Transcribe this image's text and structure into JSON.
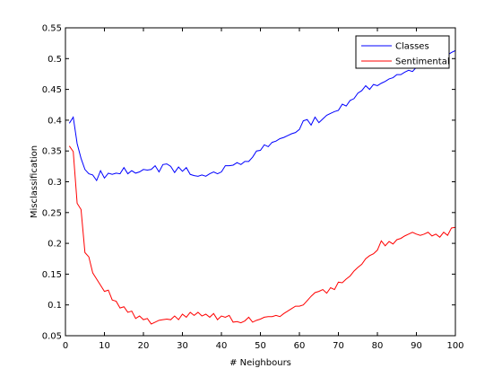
{
  "chart_data": {
    "type": "line",
    "title": "",
    "xlabel": "# Neighbours",
    "ylabel": "Misclassification",
    "xlim": [
      0,
      100
    ],
    "ylim": [
      0.05,
      0.55
    ],
    "xticks": [
      0,
      10,
      20,
      30,
      40,
      50,
      60,
      70,
      80,
      90,
      100
    ],
    "xtick_labels": [
      "0",
      "10",
      "20",
      "30",
      "40",
      "50",
      "60",
      "70",
      "80",
      "90",
      "100"
    ],
    "yticks": [
      0.05,
      0.1,
      0.15,
      0.2,
      0.25,
      0.3,
      0.35,
      0.4,
      0.45,
      0.5,
      0.55
    ],
    "ytick_labels": [
      "0.05",
      "0.1",
      "0.15",
      "0.2",
      "0.25",
      "0.3",
      "0.35",
      "0.4",
      "0.45",
      "0.5",
      "0.55"
    ],
    "grid": false,
    "legend_position": "top-right",
    "series": [
      {
        "name": "Classes",
        "color": "#0000ff",
        "points": [
          [
            1,
            0.395
          ],
          [
            2,
            0.405
          ],
          [
            3,
            0.362
          ],
          [
            4,
            0.338
          ],
          [
            5,
            0.32
          ],
          [
            6,
            0.313
          ],
          [
            7,
            0.311
          ],
          [
            8,
            0.302
          ],
          [
            9,
            0.318
          ],
          [
            10,
            0.306
          ],
          [
            11,
            0.314
          ],
          [
            12,
            0.312
          ],
          [
            13,
            0.314
          ],
          [
            14,
            0.313
          ],
          [
            15,
            0.323
          ],
          [
            16,
            0.313
          ],
          [
            17,
            0.318
          ],
          [
            18,
            0.314
          ],
          [
            19,
            0.316
          ],
          [
            20,
            0.32
          ],
          [
            21,
            0.319
          ],
          [
            22,
            0.32
          ],
          [
            23,
            0.326
          ],
          [
            24,
            0.316
          ],
          [
            25,
            0.328
          ],
          [
            26,
            0.329
          ],
          [
            27,
            0.325
          ],
          [
            28,
            0.315
          ],
          [
            29,
            0.324
          ],
          [
            30,
            0.317
          ],
          [
            31,
            0.323
          ],
          [
            32,
            0.312
          ],
          [
            33,
            0.31
          ],
          [
            34,
            0.309
          ],
          [
            35,
            0.311
          ],
          [
            36,
            0.309
          ],
          [
            37,
            0.313
          ],
          [
            38,
            0.316
          ],
          [
            39,
            0.313
          ],
          [
            40,
            0.316
          ],
          [
            41,
            0.326
          ],
          [
            42,
            0.326
          ],
          [
            43,
            0.327
          ],
          [
            44,
            0.331
          ],
          [
            45,
            0.328
          ],
          [
            46,
            0.333
          ],
          [
            47,
            0.333
          ],
          [
            48,
            0.34
          ],
          [
            49,
            0.35
          ],
          [
            50,
            0.351
          ],
          [
            51,
            0.36
          ],
          [
            52,
            0.357
          ],
          [
            53,
            0.364
          ],
          [
            54,
            0.366
          ],
          [
            55,
            0.37
          ],
          [
            56,
            0.372
          ],
          [
            57,
            0.375
          ],
          [
            58,
            0.378
          ],
          [
            59,
            0.38
          ],
          [
            60,
            0.385
          ],
          [
            61,
            0.399
          ],
          [
            62,
            0.401
          ],
          [
            63,
            0.392
          ],
          [
            64,
            0.405
          ],
          [
            65,
            0.396
          ],
          [
            66,
            0.402
          ],
          [
            67,
            0.408
          ],
          [
            68,
            0.411
          ],
          [
            69,
            0.414
          ],
          [
            70,
            0.416
          ],
          [
            71,
            0.426
          ],
          [
            72,
            0.423
          ],
          [
            73,
            0.432
          ],
          [
            74,
            0.435
          ],
          [
            75,
            0.444
          ],
          [
            76,
            0.448
          ],
          [
            77,
            0.456
          ],
          [
            78,
            0.45
          ],
          [
            79,
            0.458
          ],
          [
            80,
            0.456
          ],
          [
            81,
            0.46
          ],
          [
            82,
            0.463
          ],
          [
            83,
            0.467
          ],
          [
            84,
            0.469
          ],
          [
            85,
            0.474
          ],
          [
            86,
            0.474
          ],
          [
            87,
            0.478
          ],
          [
            88,
            0.481
          ],
          [
            89,
            0.479
          ],
          [
            90,
            0.486
          ],
          [
            91,
            0.488
          ],
          [
            92,
            0.49
          ],
          [
            93,
            0.495
          ],
          [
            94,
            0.497
          ],
          [
            95,
            0.5
          ],
          [
            96,
            0.503
          ],
          [
            97,
            0.505
          ],
          [
            98,
            0.506
          ],
          [
            99,
            0.51
          ],
          [
            100,
            0.513
          ]
        ]
      },
      {
        "name": "Sentimental",
        "color": "#ff0000",
        "points": [
          [
            1,
            0.358
          ],
          [
            2,
            0.349
          ],
          [
            3,
            0.265
          ],
          [
            4,
            0.255
          ],
          [
            5,
            0.185
          ],
          [
            6,
            0.178
          ],
          [
            7,
            0.152
          ],
          [
            8,
            0.142
          ],
          [
            9,
            0.132
          ],
          [
            10,
            0.122
          ],
          [
            11,
            0.124
          ],
          [
            12,
            0.108
          ],
          [
            13,
            0.106
          ],
          [
            14,
            0.095
          ],
          [
            15,
            0.097
          ],
          [
            16,
            0.088
          ],
          [
            17,
            0.09
          ],
          [
            18,
            0.078
          ],
          [
            19,
            0.082
          ],
          [
            20,
            0.076
          ],
          [
            21,
            0.078
          ],
          [
            22,
            0.069
          ],
          [
            23,
            0.072
          ],
          [
            24,
            0.075
          ],
          [
            25,
            0.076
          ],
          [
            26,
            0.077
          ],
          [
            27,
            0.076
          ],
          [
            28,
            0.082
          ],
          [
            29,
            0.076
          ],
          [
            30,
            0.085
          ],
          [
            31,
            0.08
          ],
          [
            32,
            0.088
          ],
          [
            33,
            0.083
          ],
          [
            34,
            0.088
          ],
          [
            35,
            0.082
          ],
          [
            36,
            0.085
          ],
          [
            37,
            0.08
          ],
          [
            38,
            0.086
          ],
          [
            39,
            0.076
          ],
          [
            40,
            0.082
          ],
          [
            41,
            0.08
          ],
          [
            42,
            0.083
          ],
          [
            43,
            0.072
          ],
          [
            44,
            0.073
          ],
          [
            45,
            0.071
          ],
          [
            46,
            0.074
          ],
          [
            47,
            0.08
          ],
          [
            48,
            0.072
          ],
          [
            49,
            0.075
          ],
          [
            50,
            0.077
          ],
          [
            51,
            0.08
          ],
          [
            52,
            0.081
          ],
          [
            53,
            0.081
          ],
          [
            54,
            0.083
          ],
          [
            55,
            0.081
          ],
          [
            56,
            0.086
          ],
          [
            57,
            0.09
          ],
          [
            58,
            0.094
          ],
          [
            59,
            0.098
          ],
          [
            60,
            0.098
          ],
          [
            61,
            0.1
          ],
          [
            62,
            0.107
          ],
          [
            63,
            0.114
          ],
          [
            64,
            0.12
          ],
          [
            65,
            0.122
          ],
          [
            66,
            0.125
          ],
          [
            67,
            0.119
          ],
          [
            68,
            0.128
          ],
          [
            69,
            0.125
          ],
          [
            70,
            0.137
          ],
          [
            71,
            0.136
          ],
          [
            72,
            0.142
          ],
          [
            73,
            0.147
          ],
          [
            74,
            0.155
          ],
          [
            75,
            0.161
          ],
          [
            76,
            0.166
          ],
          [
            77,
            0.175
          ],
          [
            78,
            0.18
          ],
          [
            79,
            0.183
          ],
          [
            80,
            0.189
          ],
          [
            81,
            0.204
          ],
          [
            82,
            0.196
          ],
          [
            83,
            0.203
          ],
          [
            84,
            0.199
          ],
          [
            85,
            0.206
          ],
          [
            86,
            0.208
          ],
          [
            87,
            0.212
          ],
          [
            88,
            0.215
          ],
          [
            89,
            0.218
          ],
          [
            90,
            0.215
          ],
          [
            91,
            0.213
          ],
          [
            92,
            0.215
          ],
          [
            93,
            0.218
          ],
          [
            94,
            0.212
          ],
          [
            95,
            0.215
          ],
          [
            96,
            0.21
          ],
          [
            97,
            0.218
          ],
          [
            98,
            0.213
          ],
          [
            99,
            0.225
          ],
          [
            100,
            0.226
          ]
        ]
      }
    ]
  }
}
